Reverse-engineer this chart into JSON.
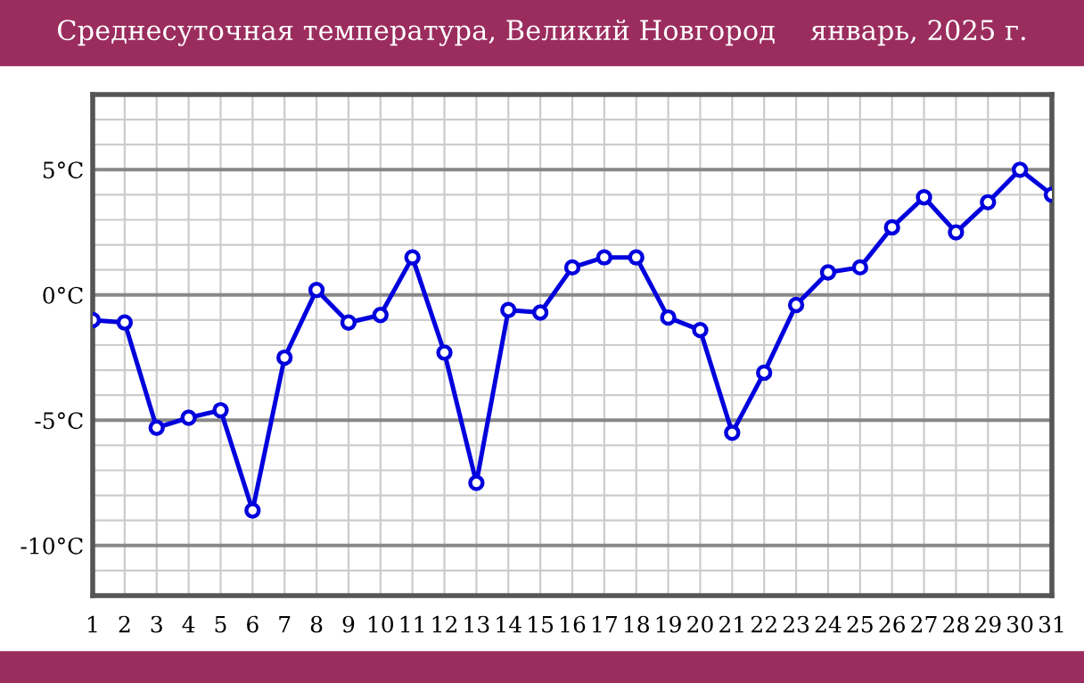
{
  "chart_data": {
    "type": "line",
    "title": "Среднесуточная температура, Великий Новгород    январь, 2025 г.",
    "x": [
      1,
      2,
      3,
      4,
      5,
      6,
      7,
      8,
      9,
      10,
      11,
      12,
      13,
      14,
      15,
      16,
      17,
      18,
      19,
      20,
      21,
      22,
      23,
      24,
      25,
      26,
      27,
      28,
      29,
      30,
      31
    ],
    "series": [
      {
        "color": "#0000dd",
        "values": [
          -1.0,
          -1.1,
          -5.3,
          -4.9,
          -4.6,
          -8.6,
          -2.5,
          0.2,
          -1.1,
          -0.8,
          1.5,
          -2.3,
          -7.5,
          -0.6,
          -0.7,
          1.1,
          1.5,
          1.5,
          -0.9,
          -1.4,
          -5.5,
          -3.1,
          -0.4,
          0.9,
          1.1,
          2.7,
          3.9,
          2.5,
          3.7,
          5.0,
          4.0
        ]
      }
    ],
    "xlim": [
      1,
      31
    ],
    "xticks": [
      1,
      2,
      3,
      4,
      5,
      6,
      7,
      8,
      9,
      10,
      11,
      12,
      13,
      14,
      15,
      16,
      17,
      18,
      19,
      20,
      21,
      22,
      23,
      24,
      25,
      26,
      27,
      28,
      29,
      30,
      31
    ],
    "ylim": [
      -12,
      8
    ],
    "yticks": [
      {
        "value": -12,
        "label": null
      },
      {
        "value": -11,
        "label": null
      },
      {
        "value": -10,
        "label": "-10°C"
      },
      {
        "value": -9,
        "label": null
      },
      {
        "value": -8,
        "label": null
      },
      {
        "value": -7,
        "label": null
      },
      {
        "value": -6,
        "label": null
      },
      {
        "value": -5,
        "label": "-5°C"
      },
      {
        "value": -4,
        "label": null
      },
      {
        "value": -3,
        "label": null
      },
      {
        "value": -2,
        "label": null
      },
      {
        "value": -1,
        "label": null
      },
      {
        "value": 0,
        "label": "0°C"
      },
      {
        "value": 1,
        "label": null
      },
      {
        "value": 2,
        "label": null
      },
      {
        "value": 3,
        "label": null
      },
      {
        "value": 4,
        "label": null
      },
      {
        "value": 5,
        "label": "5°C"
      },
      {
        "value": 6,
        "label": null
      },
      {
        "value": 7,
        "label": null
      },
      {
        "value": 8,
        "label": null
      }
    ],
    "grid": true,
    "marker": "circle",
    "line_style": "solid"
  }
}
